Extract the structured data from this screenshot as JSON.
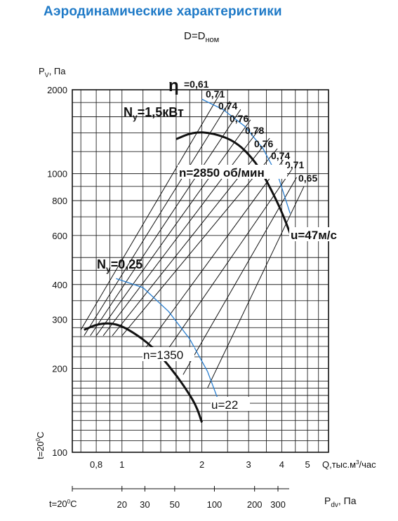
{
  "header": {
    "title": "Аэродинамические характеристики",
    "subtitle_main": "D=D",
    "subtitle_sub": "ном"
  },
  "chart_data": {
    "type": "line",
    "xscale": "log",
    "yscale": "log",
    "xlim": [
      0.65,
      6
    ],
    "ylim": [
      100,
      2000
    ],
    "grid": true,
    "ylabel_main": "P",
    "ylabel_sub": "V",
    "ylabel_unit": ", Па",
    "xlabel_prefix": "Q,тыс.м",
    "xlabel_sup": "3",
    "xlabel_suffix": "/час",
    "yticks": [
      {
        "v": 100,
        "label": "100"
      },
      {
        "v": 200,
        "label": "200"
      },
      {
        "v": 300,
        "label": "300"
      },
      {
        "v": 400,
        "label": "400"
      },
      {
        "v": 600,
        "label": "600"
      },
      {
        "v": 800,
        "label": "800"
      },
      {
        "v": 1000,
        "label": "1000"
      },
      {
        "v": 2000,
        "label": "2000"
      }
    ],
    "xticks": [
      {
        "v": 0.8,
        "label": "0,8"
      },
      {
        "v": 1,
        "label": "1"
      },
      {
        "v": 2,
        "label": "2"
      },
      {
        "v": 3,
        "label": "3"
      },
      {
        "v": 4,
        "label": "4"
      },
      {
        "v": 5,
        "label": "5"
      }
    ],
    "pdv_axis": {
      "prefix": "t=20",
      "sup": "0",
      "suffix": "С",
      "label_main": "P",
      "label_sub": "dv",
      "label_unit": ", Па",
      "ticks": [
        {
          "q": 1.0,
          "label": "20"
        },
        {
          "q": 1.22,
          "label": "30"
        },
        {
          "q": 1.58,
          "label": "50"
        },
        {
          "q": 2.23,
          "label": "100"
        },
        {
          "q": 3.16,
          "label": "200"
        },
        {
          "q": 3.87,
          "label": "300"
        }
      ]
    },
    "side_note": {
      "prefix": "t=20",
      "sup": "0",
      "suffix": "С"
    },
    "series": [
      {
        "name": "n=2850 об/мин",
        "x": [
          1.6,
          1.85,
          2.2,
          2.7,
          3.2,
          3.6,
          4.0,
          4.3
        ],
        "y": [
          1330,
          1410,
          1400,
          1300,
          1100,
          900,
          730,
          610
        ]
      },
      {
        "name": "n=1350",
        "x": [
          0.72,
          0.82,
          0.95,
          1.1,
          1.3,
          1.5,
          1.7,
          1.9,
          2.0
        ],
        "y": [
          275,
          290,
          290,
          270,
          240,
          205,
          175,
          148,
          128
        ]
      }
    ],
    "efficiency_lines": [
      "0,61",
      "0,71",
      "0,74",
      "0,76",
      "0,78",
      "0,76",
      "0,74",
      "0,71",
      "0,65"
    ],
    "eta_symbol": "η",
    "eta_top_label": "=0,61",
    "power_curves": [
      {
        "prefix": "N",
        "sub": "y",
        "suffix": "=1,5кВт",
        "x": [
          2.0,
          2.4,
          2.9,
          3.4,
          3.9,
          4.3
        ],
        "y": [
          1850,
          1700,
          1480,
          1230,
          960,
          720
        ]
      },
      {
        "prefix": "N",
        "sub": "y",
        "suffix": "=0,25",
        "x": [
          0.95,
          1.2,
          1.5,
          1.8,
          2.1,
          2.3
        ],
        "y": [
          420,
          390,
          320,
          255,
          195,
          155
        ]
      }
    ],
    "labels": {
      "n_high": "n=2850 об/мин",
      "u_high": "u=47м/с",
      "n_low": "n=1350",
      "u_low": "u=22"
    }
  }
}
